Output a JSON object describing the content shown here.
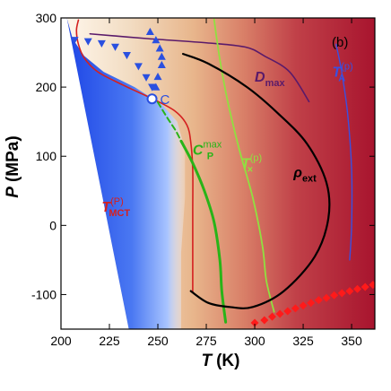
{
  "chart_data": {
    "type": "line",
    "xlabel": "T",
    "xlabel_unit": "(K)",
    "ylabel": "P",
    "ylabel_unit": "(MPa)",
    "panel_label": "(b)",
    "xlim": [
      200,
      362
    ],
    "ylim": [
      -150,
      300
    ],
    "xticks": [
      200,
      225,
      250,
      275,
      300,
      325,
      350
    ],
    "yticks": [
      -100,
      0,
      100,
      200,
      300
    ],
    "colors": {
      "liquid_hot": "#b02035",
      "liquid_mid": "#e8b88a",
      "cold": "#2850e8",
      "tmct": "#d42020",
      "dmax": "#5a1a6a",
      "cp": "#28b418",
      "tx": "#90e040",
      "rho": "#000000",
      "ta": "#3a50e0",
      "markers": "#2a50e0",
      "diamonds": "#ff1a1a"
    },
    "point_C": {
      "label": "C",
      "T": 247,
      "P": 183
    },
    "series": [
      {
        "key": "tmct",
        "label_main": "T",
        "label_sup": "(P)",
        "label_sub": "MCT",
        "label_at": [
          221,
          20
        ],
        "points": [
          [
            209,
            297
          ],
          [
            208,
            282
          ],
          [
            209,
            262
          ],
          [
            212,
            242
          ],
          [
            219,
            222
          ],
          [
            232,
            203
          ],
          [
            248,
            182
          ],
          [
            259,
            165
          ],
          [
            265,
            145
          ],
          [
            267,
            120
          ],
          [
            268,
            80
          ],
          [
            268,
            20
          ],
          [
            268,
            -40
          ],
          [
            268,
            -95
          ]
        ]
      },
      {
        "key": "dmax",
        "label_main": "D",
        "label_sub": "max",
        "label_at": [
          300,
          208
        ],
        "points": [
          [
            215,
            277
          ],
          [
            245,
            270
          ],
          [
            275,
            264
          ],
          [
            295,
            258
          ],
          [
            305,
            245
          ],
          [
            318,
            222
          ],
          [
            328,
            179
          ]
        ]
      },
      {
        "key": "cp_dashed",
        "points": [
          [
            250,
            178
          ],
          [
            255,
            155
          ],
          [
            259,
            138
          ],
          [
            262,
            122
          ]
        ]
      },
      {
        "key": "cp",
        "label_main": "C",
        "label_sup": "max",
        "label_sub": "P",
        "label_at": [
          268,
          102
        ],
        "points": [
          [
            262,
            122
          ],
          [
            268,
            90
          ],
          [
            274,
            50
          ],
          [
            279,
            5
          ],
          [
            282,
            -50
          ],
          [
            283,
            -95
          ],
          [
            285,
            -140
          ]
        ]
      },
      {
        "key": "tx",
        "label_main": "T",
        "label_sup": "(p)",
        "label_sub": "×",
        "label_at": [
          293,
          83
        ],
        "points": [
          [
            279,
            298
          ],
          [
            282,
            240
          ],
          [
            286,
            180
          ],
          [
            292,
            110
          ],
          [
            299,
            40
          ],
          [
            304,
            -30
          ],
          [
            306,
            -80
          ],
          [
            310,
            -125
          ]
        ]
      },
      {
        "key": "rho",
        "label_main": "ρ",
        "label_sub": "ext",
        "label_at": [
          320,
          70
        ],
        "points": [
          [
            263,
            248
          ],
          [
            276,
            234
          ],
          [
            296,
            200
          ],
          [
            312,
            162
          ],
          [
            327,
            118
          ],
          [
            337,
            62
          ],
          [
            338,
            10
          ],
          [
            331,
            -45
          ],
          [
            315,
            -95
          ],
          [
            299,
            -118
          ],
          [
            287,
            -118
          ],
          [
            276,
            -112
          ],
          [
            267,
            -95
          ]
        ]
      },
      {
        "key": "ta",
        "label_main": "T",
        "label_sup": "(p)",
        "label_sub": "A",
        "label_at": [
          340,
          215
        ],
        "points": [
          [
            342,
            262
          ],
          [
            345,
            220
          ],
          [
            348,
            160
          ],
          [
            350,
            80
          ],
          [
            350,
            0
          ],
          [
            349,
            -50
          ]
        ]
      }
    ],
    "markers_triangle_up": [
      [
        246,
        280
      ],
      [
        249,
        268
      ],
      [
        251,
        256
      ],
      [
        252,
        244
      ],
      [
        252,
        232
      ],
      [
        250,
        215
      ],
      [
        249,
        200
      ]
    ],
    "markers_triangle_down": [
      [
        207,
        268
      ],
      [
        214,
        266
      ],
      [
        221,
        263
      ],
      [
        228,
        258
      ],
      [
        234,
        246
      ],
      [
        240,
        230
      ],
      [
        244,
        214
      ],
      [
        247,
        200
      ]
    ],
    "markers_diamond": [
      [
        300,
        -141
      ],
      [
        305,
        -137
      ],
      [
        309,
        -132
      ],
      [
        313,
        -128
      ],
      [
        317,
        -124
      ],
      [
        321,
        -120
      ],
      [
        325,
        -116
      ],
      [
        329,
        -112
      ],
      [
        333,
        -108
      ],
      [
        337,
        -105
      ],
      [
        341,
        -101
      ],
      [
        345,
        -98
      ],
      [
        349,
        -95
      ],
      [
        353,
        -92
      ],
      [
        357,
        -89
      ],
      [
        361,
        -86
      ]
    ]
  }
}
